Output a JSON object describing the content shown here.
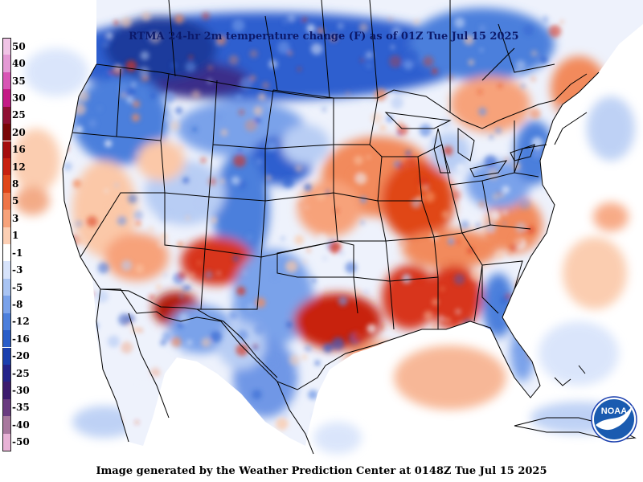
{
  "map": {
    "title": "RTMA 24-hr 2m temperature change (F) as of 01Z Tue Jul 15 2025",
    "footer": "Image generated by the Weather Prediction Center at 0148Z Tue Jul 15 2025",
    "logo_text": "NOAA",
    "colorbar": [
      {
        "label": "50",
        "color": "#f0c4e6"
      },
      {
        "label": "40",
        "color": "#e49ad5"
      },
      {
        "label": "35",
        "color": "#d855b5"
      },
      {
        "label": "30",
        "color": "#c41b86"
      },
      {
        "label": "25",
        "color": "#8f1033"
      },
      {
        "label": "20",
        "color": "#7a0606"
      },
      {
        "label": "16",
        "color": "#a50d0d"
      },
      {
        "label": "12",
        "color": "#c8210f"
      },
      {
        "label": "8",
        "color": "#e04619"
      },
      {
        "label": "5",
        "color": "#ef7548"
      },
      {
        "label": "3",
        "color": "#f7a27a"
      },
      {
        "label": "1",
        "color": "#fccfb4"
      },
      {
        "label": "-1",
        "color": "#ffffff"
      },
      {
        "label": "-3",
        "color": "#d7e3fb"
      },
      {
        "label": "-5",
        "color": "#a9c4f3"
      },
      {
        "label": "-8",
        "color": "#7aa2ea"
      },
      {
        "label": "-12",
        "color": "#4c7fdc"
      },
      {
        "label": "-16",
        "color": "#2a5ec9"
      },
      {
        "label": "-20",
        "color": "#1a3fae"
      },
      {
        "label": "-25",
        "color": "#24238a"
      },
      {
        "label": "-30",
        "color": "#3c1b6e"
      },
      {
        "label": "-35",
        "color": "#6a3b80"
      },
      {
        "label": "-40",
        "color": "#a8789e"
      },
      {
        "label": "-50",
        "color": "#e8b2d6"
      }
    ],
    "colors": {
      "ocean": "#ffffff",
      "land_neutral": "#eef2fc",
      "warm_light": "#fbc8a8",
      "warm": "#f28a5c",
      "warm_strong": "#d8341a",
      "warm_extreme": "#b01f10",
      "cool_light": "#b8cdf4",
      "cool": "#6f97e6",
      "cool_strong": "#2d5fcf",
      "cool_extreme": "#1f3a9c",
      "cool_deep": "#3a2f8a",
      "boundary": "#000000",
      "title_text": "#0c1a6b",
      "noaa_blue": "#1a5bb0",
      "noaa_gull": "#ffffff"
    },
    "icons": [
      "noaa-logo-icon"
    ]
  }
}
